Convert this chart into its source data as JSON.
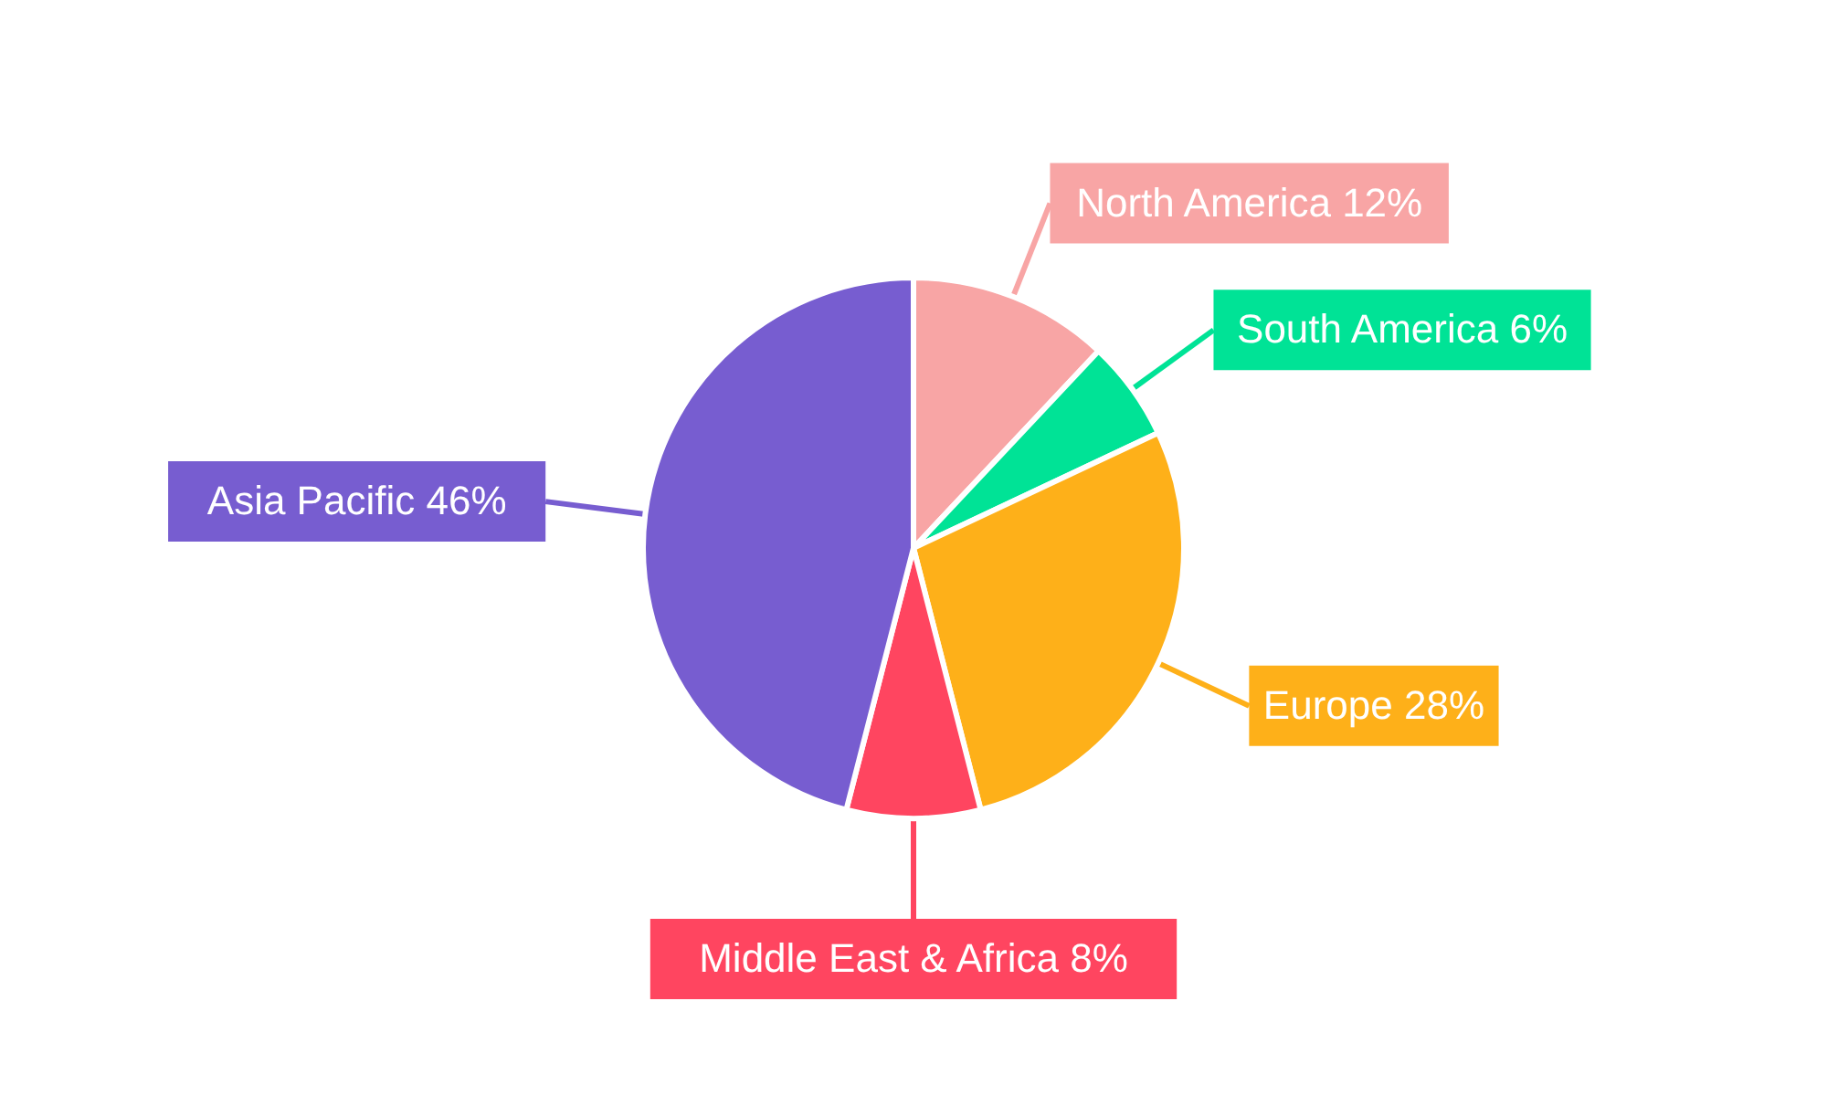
{
  "chart_data": {
    "type": "pie",
    "categories": [
      "North America",
      "South America",
      "Europe",
      "Middle East & Africa",
      "Asia Pacific"
    ],
    "values": [
      12,
      6,
      28,
      8,
      46
    ],
    "value_labels": [
      "12%",
      "6%",
      "28%",
      "8%",
      "46%"
    ],
    "colors": [
      "#f8a5a5",
      "#00e396",
      "#feb019",
      "#ff4560",
      "#775dd0"
    ]
  }
}
